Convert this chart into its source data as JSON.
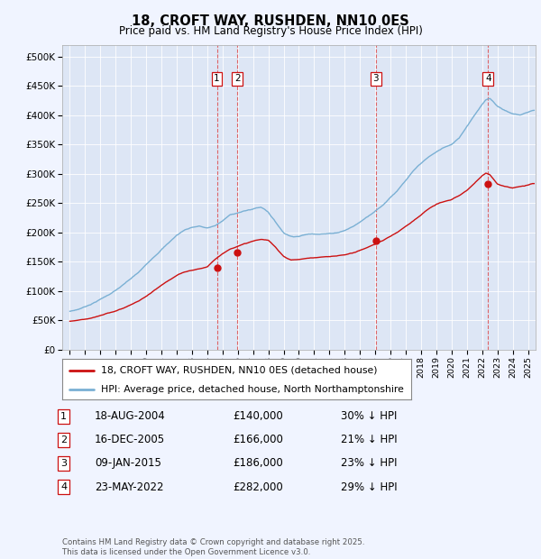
{
  "title": "18, CROFT WAY, RUSHDEN, NN10 0ES",
  "subtitle": "Price paid vs. HM Land Registry's House Price Index (HPI)",
  "background_color": "#f0f4ff",
  "plot_bg_color": "#dde6f5",
  "legend_label_red": "18, CROFT WAY, RUSHDEN, NN10 0ES (detached house)",
  "legend_label_blue": "HPI: Average price, detached house, North Northamptonshire",
  "footer": "Contains HM Land Registry data © Crown copyright and database right 2025.\nThis data is licensed under the Open Government Licence v3.0.",
  "transactions": [
    {
      "num": 1,
      "date": "18-AUG-2004",
      "date_x": 2004.63,
      "price": 140000,
      "pct": "30% ↓ HPI"
    },
    {
      "num": 2,
      "date": "16-DEC-2005",
      "date_x": 2005.96,
      "price": 166000,
      "pct": "21% ↓ HPI"
    },
    {
      "num": 3,
      "date": "09-JAN-2015",
      "date_x": 2015.03,
      "price": 186000,
      "pct": "23% ↓ HPI"
    },
    {
      "num": 4,
      "date": "23-MAY-2022",
      "date_x": 2022.39,
      "price": 282000,
      "pct": "29% ↓ HPI"
    }
  ],
  "ylim": [
    0,
    520000
  ],
  "xlim": [
    1994.5,
    2025.5
  ],
  "yticks": [
    0,
    50000,
    100000,
    150000,
    200000,
    250000,
    300000,
    350000,
    400000,
    450000,
    500000
  ],
  "ytick_labels": [
    "£0",
    "£50K",
    "£100K",
    "£150K",
    "£200K",
    "£250K",
    "£300K",
    "£350K",
    "£400K",
    "£450K",
    "£500K"
  ],
  "blue_x": [
    1995,
    1995.5,
    1996,
    1996.5,
    1997,
    1997.5,
    1998,
    1998.5,
    1999,
    1999.5,
    2000,
    2000.5,
    2001,
    2001.5,
    2002,
    2002.5,
    2003,
    2003.5,
    2004,
    2004.5,
    2005,
    2005.5,
    2006,
    2006.5,
    2007,
    2007.25,
    2007.5,
    2007.75,
    2008,
    2008.5,
    2009,
    2009.5,
    2010,
    2010.5,
    2011,
    2011.5,
    2012,
    2012.5,
    2013,
    2013.5,
    2014,
    2014.5,
    2015,
    2015.5,
    2016,
    2016.5,
    2017,
    2017.5,
    2018,
    2018.5,
    2019,
    2019.5,
    2020,
    2020.5,
    2021,
    2021.5,
    2022,
    2022.25,
    2022.5,
    2022.75,
    2023,
    2023.5,
    2024,
    2024.5,
    2025,
    2025.3
  ],
  "blue_y": [
    65000,
    68000,
    73000,
    79000,
    86000,
    93000,
    101000,
    110000,
    120000,
    130000,
    143000,
    157000,
    170000,
    182000,
    194000,
    203000,
    208000,
    210000,
    206000,
    210000,
    218000,
    228000,
    232000,
    235000,
    238000,
    240000,
    241000,
    238000,
    233000,
    215000,
    198000,
    192000,
    193000,
    196000,
    197000,
    198000,
    198000,
    200000,
    204000,
    210000,
    218000,
    228000,
    238000,
    248000,
    262000,
    275000,
    290000,
    305000,
    318000,
    328000,
    336000,
    344000,
    348000,
    360000,
    380000,
    400000,
    418000,
    425000,
    428000,
    422000,
    415000,
    408000,
    402000,
    400000,
    405000,
    408000
  ],
  "red_x": [
    1995,
    1995.5,
    1996,
    1996.5,
    1997,
    1997.5,
    1998,
    1998.5,
    1999,
    1999.5,
    2000,
    2000.5,
    2001,
    2001.5,
    2002,
    2002.5,
    2003,
    2003.5,
    2004,
    2004.5,
    2005,
    2005.5,
    2006,
    2006.5,
    2007,
    2007.5,
    2008,
    2008.5,
    2009,
    2009.5,
    2010,
    2010.5,
    2011,
    2011.5,
    2012,
    2012.5,
    2013,
    2013.5,
    2014,
    2014.5,
    2015,
    2015.5,
    2016,
    2016.5,
    2017,
    2017.5,
    2018,
    2018.5,
    2019,
    2019.5,
    2020,
    2020.5,
    2021,
    2021.5,
    2022,
    2022.25,
    2022.5,
    2022.75,
    2023,
    2023.5,
    2024,
    2024.5,
    2025,
    2025.3
  ],
  "red_y": [
    48000,
    50000,
    52000,
    55000,
    58000,
    62000,
    66000,
    71000,
    77000,
    83000,
    91000,
    100000,
    109000,
    117000,
    125000,
    130000,
    133000,
    136000,
    138000,
    152000,
    162000,
    170000,
    176000,
    180000,
    184000,
    187000,
    185000,
    172000,
    158000,
    152000,
    153000,
    155000,
    156000,
    157000,
    157000,
    158000,
    160000,
    163000,
    168000,
    173000,
    179000,
    185000,
    192000,
    200000,
    210000,
    220000,
    230000,
    240000,
    247000,
    252000,
    255000,
    261000,
    270000,
    282000,
    295000,
    300000,
    298000,
    290000,
    282000,
    278000,
    276000,
    278000,
    280000,
    283000
  ]
}
